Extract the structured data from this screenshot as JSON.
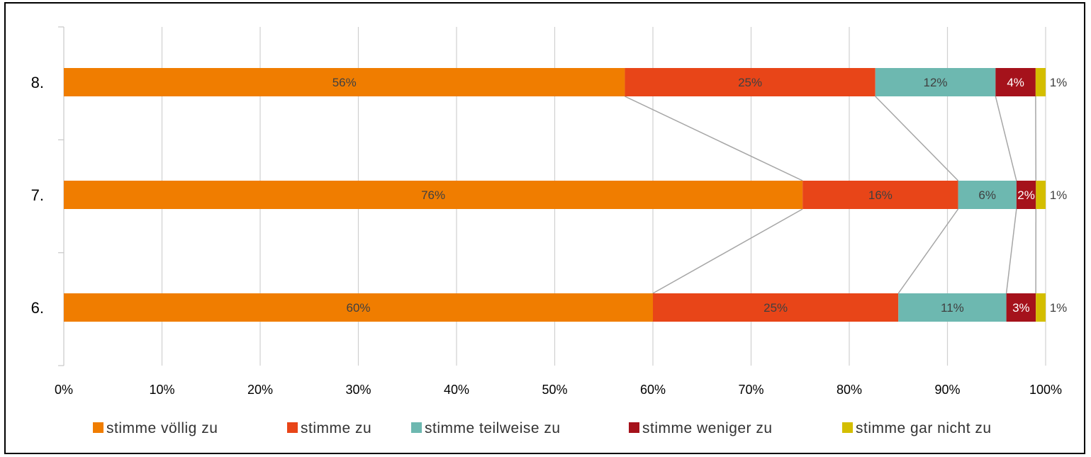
{
  "chart_data": {
    "type": "bar",
    "orientation": "horizontal",
    "stacked": "percent",
    "categories": [
      "8.",
      "7.",
      "6."
    ],
    "series": [
      {
        "name": "stimme völlig zu",
        "color": "#F07D00",
        "values": [
          56,
          76,
          60
        ],
        "labels": [
          "56%",
          "76%",
          "60%"
        ],
        "label_color": "#404040"
      },
      {
        "name": "stimme zu",
        "color": "#E84518",
        "values": [
          25,
          16,
          25
        ],
        "labels": [
          "25%",
          "16%",
          "25%"
        ],
        "label_color": "#404040"
      },
      {
        "name": "stimme teilweise zu",
        "color": "#6DB8B0",
        "values": [
          12,
          6,
          11
        ],
        "labels": [
          "12%",
          "6%",
          "11%"
        ],
        "label_color": "#404040"
      },
      {
        "name": "stimme weniger zu",
        "color": "#A5121B",
        "values": [
          4,
          2,
          3
        ],
        "labels": [
          "4%",
          "2%",
          "3%"
        ],
        "label_color": "#ffffff"
      },
      {
        "name": "stimme gar nicht zu",
        "color": "#D4BE00",
        "values": [
          1,
          1,
          1
        ],
        "labels": [
          "1%",
          "1%",
          "1%"
        ],
        "label_color": "#404040"
      }
    ],
    "xlim": [
      0,
      100
    ],
    "xticks": [
      "0%",
      "10%",
      "20%",
      "30%",
      "40%",
      "50%",
      "60%",
      "70%",
      "80%",
      "90%",
      "100%"
    ],
    "grid": "vertical",
    "series_lines": true,
    "legend_position": "bottom"
  }
}
